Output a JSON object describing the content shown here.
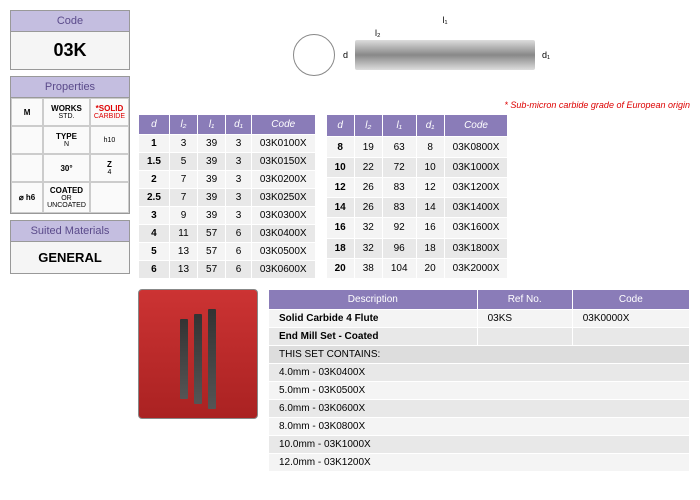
{
  "code_panel": {
    "header": "Code",
    "value": "03K"
  },
  "props_panel": {
    "header": "Properties",
    "cells": [
      {
        "main": "M",
        "sub": ""
      },
      {
        "main": "WORKS",
        "sub": "STD."
      },
      {
        "main": "*SOLID",
        "sub": "CARBIDE",
        "red": true
      },
      {
        "main": "",
        "sub": ""
      },
      {
        "main": "TYPE",
        "sub": "N"
      },
      {
        "main": "",
        "sub": "h10"
      },
      {
        "main": "",
        "sub": ""
      },
      {
        "main": "30°",
        "sub": ""
      },
      {
        "main": "Z",
        "sub": "4"
      },
      {
        "main": "⌀ h6",
        "sub": ""
      },
      {
        "main": "COATED",
        "sub": "OR UNCOATED"
      },
      {
        "main": "",
        "sub": ""
      }
    ]
  },
  "mat_panel": {
    "header": "Suited Materials",
    "value": "GENERAL"
  },
  "note": "* Sub-micron carbide grade of European origin",
  "diag_labels": {
    "l1": "l₁",
    "l2": "l₂",
    "d": "d",
    "d1": "d₁"
  },
  "table_headers": [
    "d",
    "l₂",
    "l₁",
    "d₁",
    "Code"
  ],
  "table1": [
    [
      "1",
      "3",
      "39",
      "3",
      "03K0100X"
    ],
    [
      "1.5",
      "5",
      "39",
      "3",
      "03K0150X"
    ],
    [
      "2",
      "7",
      "39",
      "3",
      "03K0200X"
    ],
    [
      "2.5",
      "7",
      "39",
      "3",
      "03K0250X"
    ],
    [
      "3",
      "9",
      "39",
      "3",
      "03K0300X"
    ],
    [
      "4",
      "11",
      "57",
      "6",
      "03K0400X"
    ],
    [
      "5",
      "13",
      "57",
      "6",
      "03K0500X"
    ],
    [
      "6",
      "13",
      "57",
      "6",
      "03K0600X"
    ]
  ],
  "table2": [
    [
      "8",
      "19",
      "63",
      "8",
      "03K0800X"
    ],
    [
      "10",
      "22",
      "72",
      "10",
      "03K1000X"
    ],
    [
      "12",
      "26",
      "83",
      "12",
      "03K1200X"
    ],
    [
      "14",
      "26",
      "83",
      "14",
      "03K1400X"
    ],
    [
      "16",
      "32",
      "92",
      "16",
      "03K1600X"
    ],
    [
      "18",
      "32",
      "96",
      "18",
      "03K1800X"
    ],
    [
      "20",
      "38",
      "104",
      "20",
      "03K2000X"
    ]
  ],
  "desc_headers": [
    "Description",
    "Ref No.",
    "Code"
  ],
  "desc_row": {
    "desc": "Solid Carbide 4 Flute\nEnd Mill Set - Coated",
    "ref": "03KS",
    "code": "03K0000X"
  },
  "set_header": "THIS SET CONTAINS:",
  "set_items": [
    "4.0mm - 03K0400X",
    "5.0mm - 03K0500X",
    "6.0mm - 03K0600X",
    "8.0mm - 03K0800X",
    "10.0mm - 03K1000X",
    "12.0mm - 03K1200X"
  ]
}
